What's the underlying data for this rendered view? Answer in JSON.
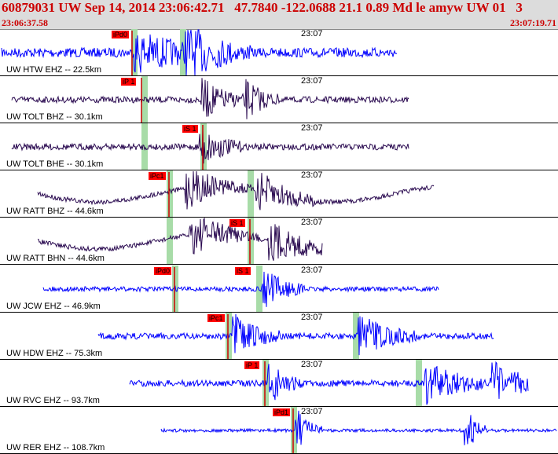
{
  "header": {
    "title": "60879031 UW Sep 14, 2014 23:06:42.71   47.7840 -122.0688 21.1 0.89 Md le amyw UW 01   3",
    "time_start": "23:06:37.58",
    "time_end": "23:07:19.71"
  },
  "colors": {
    "header_text": "#cc0000",
    "trace_blue": "#0000ff",
    "trace_dark": "#2a0a50",
    "pick_bg": "#ff0000",
    "window_green": "#a8dca8"
  },
  "traces": [
    {
      "station": "UW HTW EHZ -- 22.5km",
      "minute_label": "23:07",
      "pick_label": "iPd0",
      "color": "blue"
    },
    {
      "station": "UW TOLT BHZ -- 30.1km",
      "minute_label": "23:07",
      "pick_label": "iP 1",
      "color": "dark"
    },
    {
      "station": "UW TOLT BHE -- 30.1km",
      "minute_label": "23:07",
      "pick_label": "iS 1",
      "color": "dark"
    },
    {
      "station": "UW RATT BHZ -- 44.6km",
      "minute_label": "23:07",
      "pick_label": "iPc1",
      "color": "dark"
    },
    {
      "station": "UW RATT BHN -- 44.6km",
      "minute_label": "23:07",
      "pick_label": "iS 1",
      "color": "dark"
    },
    {
      "station": "UW JCW EHZ -- 46.9km",
      "minute_label": "23:07",
      "pick_label": "iPd0",
      "pick2_label": "iS 1",
      "color": "blue"
    },
    {
      "station": "UW HDW EHZ -- 75.3km",
      "minute_label": "23:07",
      "pick_label": "iPc1",
      "color": "blue"
    },
    {
      "station": "UW RVC EHZ -- 93.7km",
      "minute_label": "23:07",
      "pick_label": "iP 1",
      "color": "blue"
    },
    {
      "station": "UW RER EHZ -- 108.7km",
      "minute_label": "23:07",
      "pick_label": "iPd1",
      "color": "blue"
    }
  ]
}
